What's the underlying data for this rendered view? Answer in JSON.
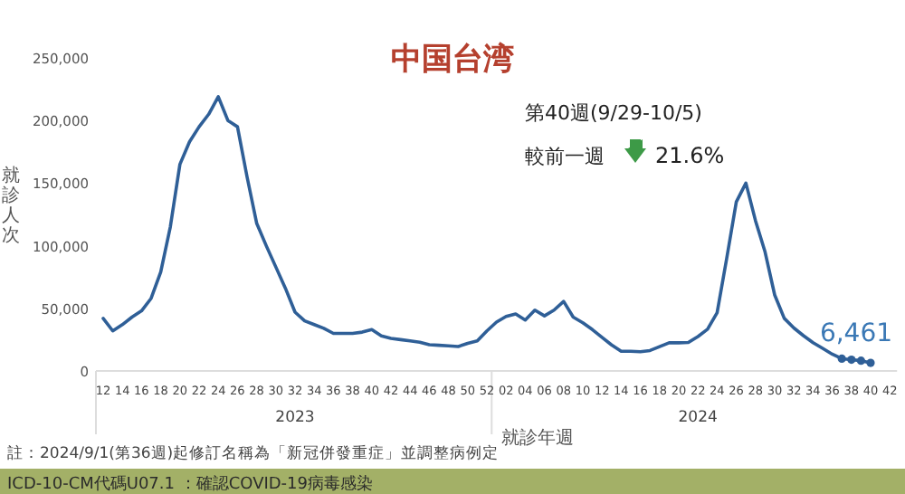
{
  "chart_data": {
    "type": "line",
    "title": "中国台湾",
    "subtitle": "第40週(9/29-10/5)",
    "ylabel": "就診人次",
    "xlabel": "就診年週",
    "categories": [
      "12",
      null,
      "14",
      null,
      "16",
      null,
      "18",
      null,
      "20",
      null,
      "22",
      null,
      "24",
      null,
      "26",
      null,
      "28",
      null,
      "30",
      null,
      "32",
      null,
      "34",
      null,
      "36",
      null,
      "38",
      null,
      "40",
      null,
      "42",
      null,
      "44",
      null,
      "46",
      null,
      "48",
      null,
      "50",
      null,
      "52",
      null,
      "02",
      null,
      "04",
      null,
      "06",
      null,
      "08",
      null,
      "10",
      null,
      "12",
      null,
      "14",
      null,
      "16",
      null,
      "18",
      null,
      "20",
      null,
      "22",
      null,
      "24",
      null,
      "26",
      null,
      "28",
      null,
      "30",
      null,
      "32",
      null,
      "34",
      null,
      "36",
      null,
      "38",
      null,
      "40",
      null,
      "42"
    ],
    "ylim": [
      0,
      250000
    ],
    "yticks": [
      0,
      {
        "value": 50000,
        "label": "50,000"
      },
      {
        "value": 100000,
        "label": "100,000"
      },
      {
        "value": 150000,
        "label": "150,000"
      },
      {
        "value": 200000,
        "label": "200,000"
      },
      {
        "value": 250000,
        "label": "250,000"
      }
    ],
    "series": [
      {
        "color": "#2f5f97",
        "values": [
          42000,
          32000,
          37000,
          43000,
          48000,
          58000,
          79000,
          115000,
          165000,
          183000,
          195000,
          205000,
          219000,
          200000,
          195000,
          155000,
          118000,
          100000,
          83000,
          66000,
          47000,
          40000,
          37000,
          34000,
          30000,
          30000,
          30000,
          31000,
          33000,
          28000,
          26000,
          25000,
          24000,
          23000,
          21000,
          20500,
          20000,
          19500,
          22000,
          24000,
          32000,
          39000,
          43500,
          45500,
          40700,
          48600,
          44000,
          48600,
          55500,
          43000,
          38500,
          33000,
          26800,
          20800,
          15700,
          15700,
          15300,
          16300,
          19400,
          22500,
          22500,
          22800,
          27500,
          33300,
          46500,
          90000,
          135000,
          150000,
          120000,
          95000,
          60700,
          42000,
          34300,
          28200,
          22600,
          18000,
          13400,
          9800,
          9000,
          8200,
          6461,
          null,
          null
        ]
      },
      {
        "type": "scatter",
        "marker": "circle",
        "color": "#2f5f97",
        "values": [
          null,
          null,
          null,
          null,
          null,
          null,
          null,
          null,
          null,
          null,
          null,
          null,
          null,
          null,
          null,
          null,
          null,
          null,
          null,
          null,
          null,
          null,
          null,
          null,
          null,
          null,
          null,
          null,
          null,
          null,
          null,
          null,
          null,
          null,
          null,
          null,
          null,
          null,
          null,
          null,
          null,
          null,
          null,
          null,
          null,
          null,
          null,
          null,
          null,
          null,
          null,
          null,
          null,
          null,
          null,
          null,
          null,
          null,
          null,
          null,
          null,
          null,
          null,
          null,
          null,
          null,
          null,
          null,
          null,
          null,
          null,
          null,
          null,
          null,
          null,
          null,
          null,
          9800,
          9000,
          8200,
          6461,
          null,
          null
        ],
        "value_labels": [
          null,
          null,
          null,
          null,
          null,
          null,
          null,
          null,
          null,
          null,
          null,
          null,
          null,
          null,
          null,
          null,
          null,
          null,
          null,
          null,
          null,
          null,
          null,
          null,
          null,
          null,
          null,
          null,
          null,
          null,
          null,
          null,
          null,
          null,
          null,
          null,
          null,
          null,
          null,
          null,
          null,
          null,
          null,
          null,
          null,
          null,
          null,
          null,
          null,
          null,
          null,
          null,
          null,
          null,
          null,
          null,
          null,
          null,
          null,
          null,
          null,
          null,
          null,
          null,
          null,
          null,
          null,
          null,
          null,
          null,
          null,
          null,
          null,
          null,
          null,
          null,
          null,
          null,
          null,
          null,
          "6,461",
          null,
          null
        ]
      }
    ],
    "annotations": [
      "較前一週",
      "21.6%",
      "2023",
      "2024",
      "註：2024/9/1(第36週)起修訂名稱為「新冠併發重症」並調整病例定",
      "ICD-10-CM代碼U07.1 ：確認COVID-19病毒感染"
    ]
  }
}
